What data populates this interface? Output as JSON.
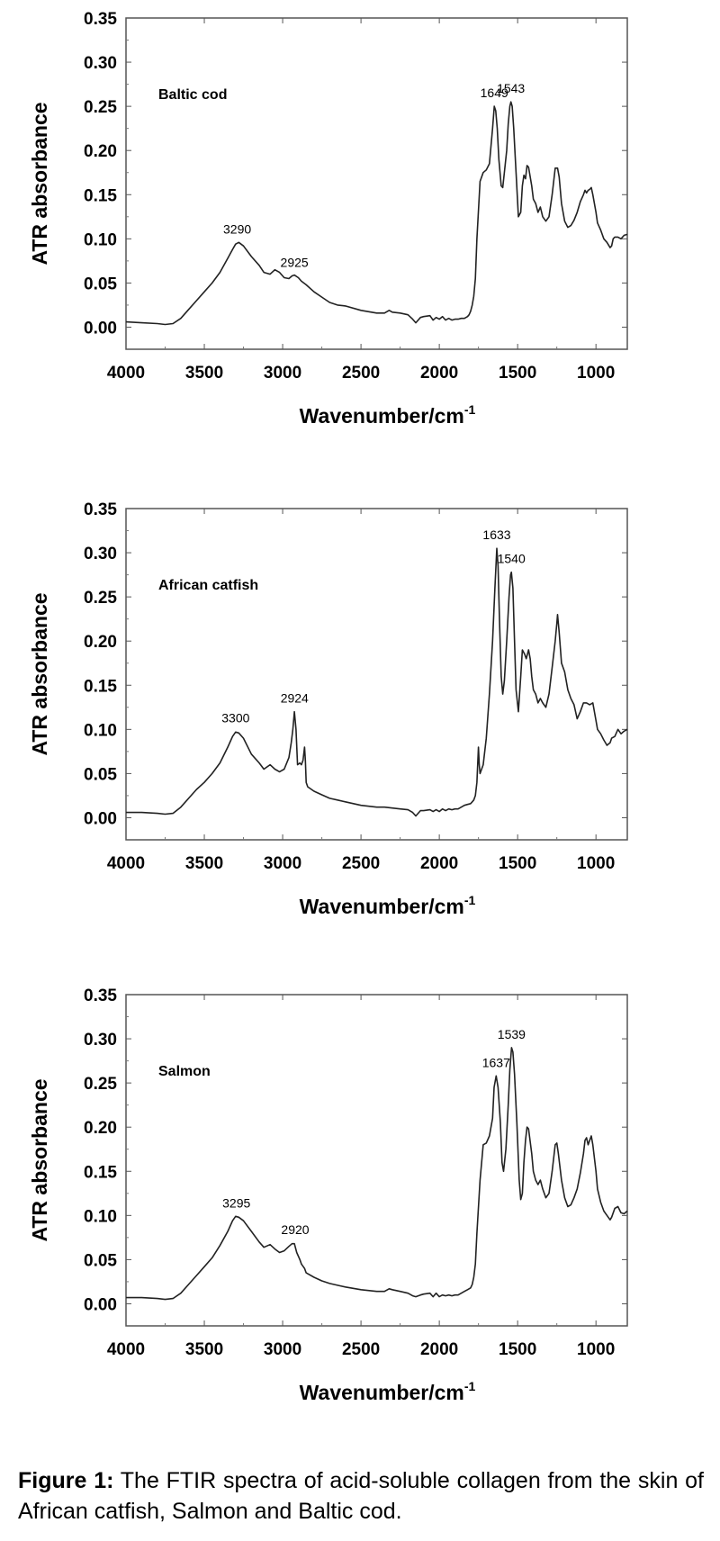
{
  "chart_data": [
    {
      "type": "line",
      "series_label": "Baltic cod",
      "xlabel": "Wavenumber/cm",
      "xlabel_sup": "-1",
      "ylabel": "ATR absorbance",
      "xlim": [
        4000,
        800
      ],
      "ylim": [
        -0.025,
        0.35
      ],
      "xticks": [
        "4000",
        "3500",
        "3000",
        "2500",
        "2000",
        "1500",
        "1000"
      ],
      "yticks": [
        "0.00",
        "0.05",
        "0.10",
        "0.15",
        "0.20",
        "0.25",
        "0.30",
        "0.35"
      ],
      "peak_labels": [
        {
          "text": "3290",
          "x": 3290,
          "y": 0.096
        },
        {
          "text": "2925",
          "x": 2925,
          "y": 0.058
        },
        {
          "text": "1649",
          "x": 1649,
          "y": 0.25
        },
        {
          "text": "1543",
          "x": 1543,
          "y": 0.255
        }
      ],
      "x": [
        4000,
        3900,
        3800,
        3750,
        3700,
        3650,
        3600,
        3550,
        3500,
        3450,
        3400,
        3350,
        3320,
        3300,
        3280,
        3250,
        3200,
        3150,
        3120,
        3080,
        3050,
        3020,
        2990,
        2960,
        2940,
        2925,
        2900,
        2880,
        2850,
        2800,
        2750,
        2700,
        2650,
        2600,
        2500,
        2400,
        2350,
        2320,
        2300,
        2250,
        2200,
        2170,
        2150,
        2120,
        2100,
        2060,
        2040,
        2020,
        2000,
        1980,
        1960,
        1940,
        1920,
        1900,
        1880,
        1860,
        1840,
        1820,
        1810,
        1800,
        1790,
        1780,
        1770,
        1760,
        1740,
        1720,
        1700,
        1680,
        1660,
        1649,
        1640,
        1630,
        1620,
        1605,
        1595,
        1585,
        1570,
        1560,
        1550,
        1543,
        1535,
        1525,
        1510,
        1495,
        1480,
        1470,
        1460,
        1450,
        1440,
        1430,
        1410,
        1400,
        1385,
        1370,
        1355,
        1340,
        1320,
        1300,
        1280,
        1260,
        1245,
        1235,
        1220,
        1200,
        1180,
        1160,
        1140,
        1120,
        1100,
        1080,
        1070,
        1060,
        1050,
        1040,
        1030,
        1020,
        1000,
        990,
        970,
        950,
        930,
        910,
        900,
        890,
        880,
        860,
        840,
        820,
        800
      ],
      "y": [
        0.006,
        0.005,
        0.004,
        0.003,
        0.004,
        0.01,
        0.02,
        0.03,
        0.04,
        0.05,
        0.062,
        0.078,
        0.088,
        0.094,
        0.096,
        0.092,
        0.08,
        0.07,
        0.062,
        0.06,
        0.065,
        0.062,
        0.056,
        0.055,
        0.058,
        0.059,
        0.056,
        0.052,
        0.048,
        0.04,
        0.034,
        0.028,
        0.025,
        0.024,
        0.019,
        0.016,
        0.016,
        0.019,
        0.017,
        0.016,
        0.014,
        0.009,
        0.005,
        0.011,
        0.012,
        0.013,
        0.008,
        0.011,
        0.009,
        0.012,
        0.008,
        0.01,
        0.008,
        0.009,
        0.009,
        0.01,
        0.01,
        0.012,
        0.014,
        0.018,
        0.025,
        0.035,
        0.055,
        0.1,
        0.165,
        0.175,
        0.178,
        0.185,
        0.225,
        0.25,
        0.245,
        0.225,
        0.19,
        0.16,
        0.158,
        0.175,
        0.2,
        0.23,
        0.25,
        0.255,
        0.25,
        0.225,
        0.175,
        0.125,
        0.13,
        0.16,
        0.172,
        0.168,
        0.183,
        0.181,
        0.16,
        0.145,
        0.14,
        0.13,
        0.136,
        0.125,
        0.12,
        0.125,
        0.15,
        0.18,
        0.18,
        0.17,
        0.14,
        0.12,
        0.113,
        0.115,
        0.121,
        0.13,
        0.142,
        0.15,
        0.155,
        0.152,
        0.155,
        0.156,
        0.158,
        0.15,
        0.13,
        0.118,
        0.11,
        0.1,
        0.096,
        0.09,
        0.092,
        0.1,
        0.102,
        0.102,
        0.1,
        0.104,
        0.105
      ]
    },
    {
      "type": "line",
      "series_label": "African catfish",
      "xlabel": "Wavenumber/cm",
      "xlabel_sup": "-1",
      "ylabel": "ATR absorbance",
      "xlim": [
        4000,
        800
      ],
      "ylim": [
        -0.025,
        0.35
      ],
      "xticks": [
        "4000",
        "3500",
        "3000",
        "2500",
        "2000",
        "1500",
        "1000"
      ],
      "yticks": [
        "0.00",
        "0.05",
        "0.10",
        "0.15",
        "0.20",
        "0.25",
        "0.30",
        "0.35"
      ],
      "peak_labels": [
        {
          "text": "3300",
          "x": 3300,
          "y": 0.098
        },
        {
          "text": "2924",
          "x": 2924,
          "y": 0.12
        },
        {
          "text": "1633",
          "x": 1633,
          "y": 0.305
        },
        {
          "text": "1540",
          "x": 1540,
          "y": 0.278
        }
      ],
      "x": [
        4000,
        3900,
        3800,
        3750,
        3700,
        3650,
        3600,
        3550,
        3500,
        3450,
        3400,
        3350,
        3320,
        3300,
        3280,
        3250,
        3200,
        3150,
        3120,
        3080,
        3050,
        3020,
        2990,
        2960,
        2945,
        2935,
        2925,
        2915,
        2905,
        2890,
        2880,
        2870,
        2860,
        2855,
        2850,
        2840,
        2800,
        2750,
        2700,
        2650,
        2600,
        2500,
        2400,
        2350,
        2300,
        2250,
        2200,
        2170,
        2150,
        2120,
        2100,
        2060,
        2040,
        2020,
        2000,
        1980,
        1960,
        1940,
        1920,
        1900,
        1880,
        1860,
        1840,
        1820,
        1800,
        1790,
        1780,
        1770,
        1760,
        1750,
        1745,
        1740,
        1720,
        1700,
        1680,
        1660,
        1645,
        1633,
        1625,
        1615,
        1605,
        1595,
        1585,
        1570,
        1555,
        1545,
        1540,
        1530,
        1520,
        1510,
        1495,
        1480,
        1470,
        1455,
        1445,
        1430,
        1420,
        1410,
        1400,
        1385,
        1370,
        1355,
        1340,
        1320,
        1300,
        1280,
        1260,
        1250,
        1245,
        1235,
        1220,
        1200,
        1180,
        1160,
        1140,
        1120,
        1100,
        1080,
        1060,
        1040,
        1020,
        1000,
        990,
        970,
        950,
        930,
        910,
        900,
        880,
        860,
        840,
        820,
        800
      ],
      "y": [
        0.006,
        0.006,
        0.005,
        0.004,
        0.005,
        0.012,
        0.022,
        0.032,
        0.04,
        0.05,
        0.062,
        0.08,
        0.092,
        0.097,
        0.096,
        0.09,
        0.072,
        0.062,
        0.055,
        0.06,
        0.055,
        0.052,
        0.055,
        0.068,
        0.085,
        0.1,
        0.12,
        0.1,
        0.06,
        0.062,
        0.06,
        0.065,
        0.08,
        0.065,
        0.04,
        0.035,
        0.03,
        0.026,
        0.022,
        0.02,
        0.018,
        0.014,
        0.012,
        0.012,
        0.011,
        0.01,
        0.009,
        0.006,
        0.002,
        0.008,
        0.008,
        0.009,
        0.007,
        0.009,
        0.007,
        0.01,
        0.008,
        0.01,
        0.009,
        0.01,
        0.01,
        0.012,
        0.014,
        0.015,
        0.016,
        0.018,
        0.02,
        0.025,
        0.04,
        0.08,
        0.06,
        0.05,
        0.06,
        0.09,
        0.14,
        0.2,
        0.26,
        0.305,
        0.285,
        0.22,
        0.16,
        0.14,
        0.155,
        0.2,
        0.25,
        0.275,
        0.278,
        0.26,
        0.2,
        0.145,
        0.12,
        0.16,
        0.19,
        0.185,
        0.18,
        0.19,
        0.18,
        0.16,
        0.145,
        0.14,
        0.13,
        0.135,
        0.13,
        0.125,
        0.14,
        0.17,
        0.2,
        0.22,
        0.23,
        0.21,
        0.175,
        0.165,
        0.145,
        0.135,
        0.128,
        0.112,
        0.12,
        0.13,
        0.13,
        0.128,
        0.13,
        0.11,
        0.1,
        0.095,
        0.088,
        0.082,
        0.085,
        0.09,
        0.092,
        0.1,
        0.095,
        0.098,
        0.1
      ]
    },
    {
      "type": "line",
      "series_label": "Salmon",
      "xlabel": "Wavenumber/cm",
      "xlabel_sup": "-1",
      "ylabel": "ATR absorbance",
      "xlim": [
        4000,
        800
      ],
      "ylim": [
        -0.025,
        0.35
      ],
      "xticks": [
        "4000",
        "3500",
        "3000",
        "2500",
        "2000",
        "1500",
        "1000"
      ],
      "yticks": [
        "0.00",
        "0.05",
        "0.10",
        "0.15",
        "0.20",
        "0.25",
        "0.30",
        "0.35"
      ],
      "peak_labels": [
        {
          "text": "3295",
          "x": 3295,
          "y": 0.099
        },
        {
          "text": "2920",
          "x": 2920,
          "y": 0.069
        },
        {
          "text": "1637",
          "x": 1637,
          "y": 0.258
        },
        {
          "text": "1539",
          "x": 1539,
          "y": 0.29
        }
      ],
      "x": [
        4000,
        3900,
        3800,
        3750,
        3700,
        3650,
        3600,
        3550,
        3500,
        3450,
        3400,
        3350,
        3320,
        3300,
        3280,
        3250,
        3200,
        3150,
        3120,
        3080,
        3050,
        3020,
        2990,
        2960,
        2940,
        2925,
        2910,
        2890,
        2880,
        2860,
        2850,
        2800,
        2750,
        2700,
        2650,
        2600,
        2500,
        2400,
        2350,
        2320,
        2300,
        2250,
        2200,
        2170,
        2150,
        2120,
        2100,
        2060,
        2040,
        2020,
        2000,
        1980,
        1960,
        1940,
        1920,
        1900,
        1880,
        1860,
        1840,
        1820,
        1800,
        1790,
        1780,
        1770,
        1760,
        1740,
        1720,
        1700,
        1680,
        1660,
        1650,
        1637,
        1625,
        1610,
        1600,
        1590,
        1575,
        1560,
        1550,
        1539,
        1530,
        1520,
        1505,
        1490,
        1480,
        1470,
        1460,
        1450,
        1440,
        1430,
        1410,
        1400,
        1385,
        1370,
        1355,
        1340,
        1320,
        1300,
        1280,
        1260,
        1250,
        1240,
        1220,
        1200,
        1180,
        1160,
        1140,
        1120,
        1100,
        1080,
        1070,
        1060,
        1050,
        1040,
        1030,
        1020,
        1000,
        990,
        970,
        950,
        930,
        910,
        900,
        880,
        860,
        840,
        820,
        800
      ],
      "y": [
        0.007,
        0.007,
        0.006,
        0.005,
        0.006,
        0.012,
        0.022,
        0.032,
        0.042,
        0.052,
        0.066,
        0.082,
        0.094,
        0.099,
        0.098,
        0.094,
        0.082,
        0.07,
        0.064,
        0.067,
        0.062,
        0.058,
        0.06,
        0.065,
        0.068,
        0.068,
        0.058,
        0.05,
        0.045,
        0.04,
        0.035,
        0.03,
        0.026,
        0.023,
        0.021,
        0.019,
        0.016,
        0.014,
        0.014,
        0.017,
        0.016,
        0.014,
        0.012,
        0.009,
        0.008,
        0.01,
        0.011,
        0.012,
        0.008,
        0.012,
        0.008,
        0.01,
        0.009,
        0.01,
        0.009,
        0.01,
        0.01,
        0.012,
        0.014,
        0.016,
        0.018,
        0.022,
        0.03,
        0.045,
        0.08,
        0.14,
        0.18,
        0.182,
        0.19,
        0.21,
        0.245,
        0.258,
        0.245,
        0.205,
        0.16,
        0.15,
        0.175,
        0.225,
        0.265,
        0.29,
        0.285,
        0.26,
        0.205,
        0.14,
        0.118,
        0.125,
        0.16,
        0.185,
        0.2,
        0.198,
        0.17,
        0.15,
        0.14,
        0.135,
        0.14,
        0.13,
        0.12,
        0.125,
        0.15,
        0.18,
        0.182,
        0.17,
        0.14,
        0.12,
        0.11,
        0.112,
        0.12,
        0.13,
        0.148,
        0.17,
        0.185,
        0.188,
        0.18,
        0.185,
        0.19,
        0.18,
        0.15,
        0.13,
        0.115,
        0.105,
        0.1,
        0.095,
        0.098,
        0.108,
        0.11,
        0.103,
        0.102,
        0.105
      ]
    }
  ],
  "caption": {
    "label": "Figure 1:",
    "text": " The FTIR spectra of acid-soluble collagen from the skin of African catfish, Salmon and Baltic cod."
  }
}
